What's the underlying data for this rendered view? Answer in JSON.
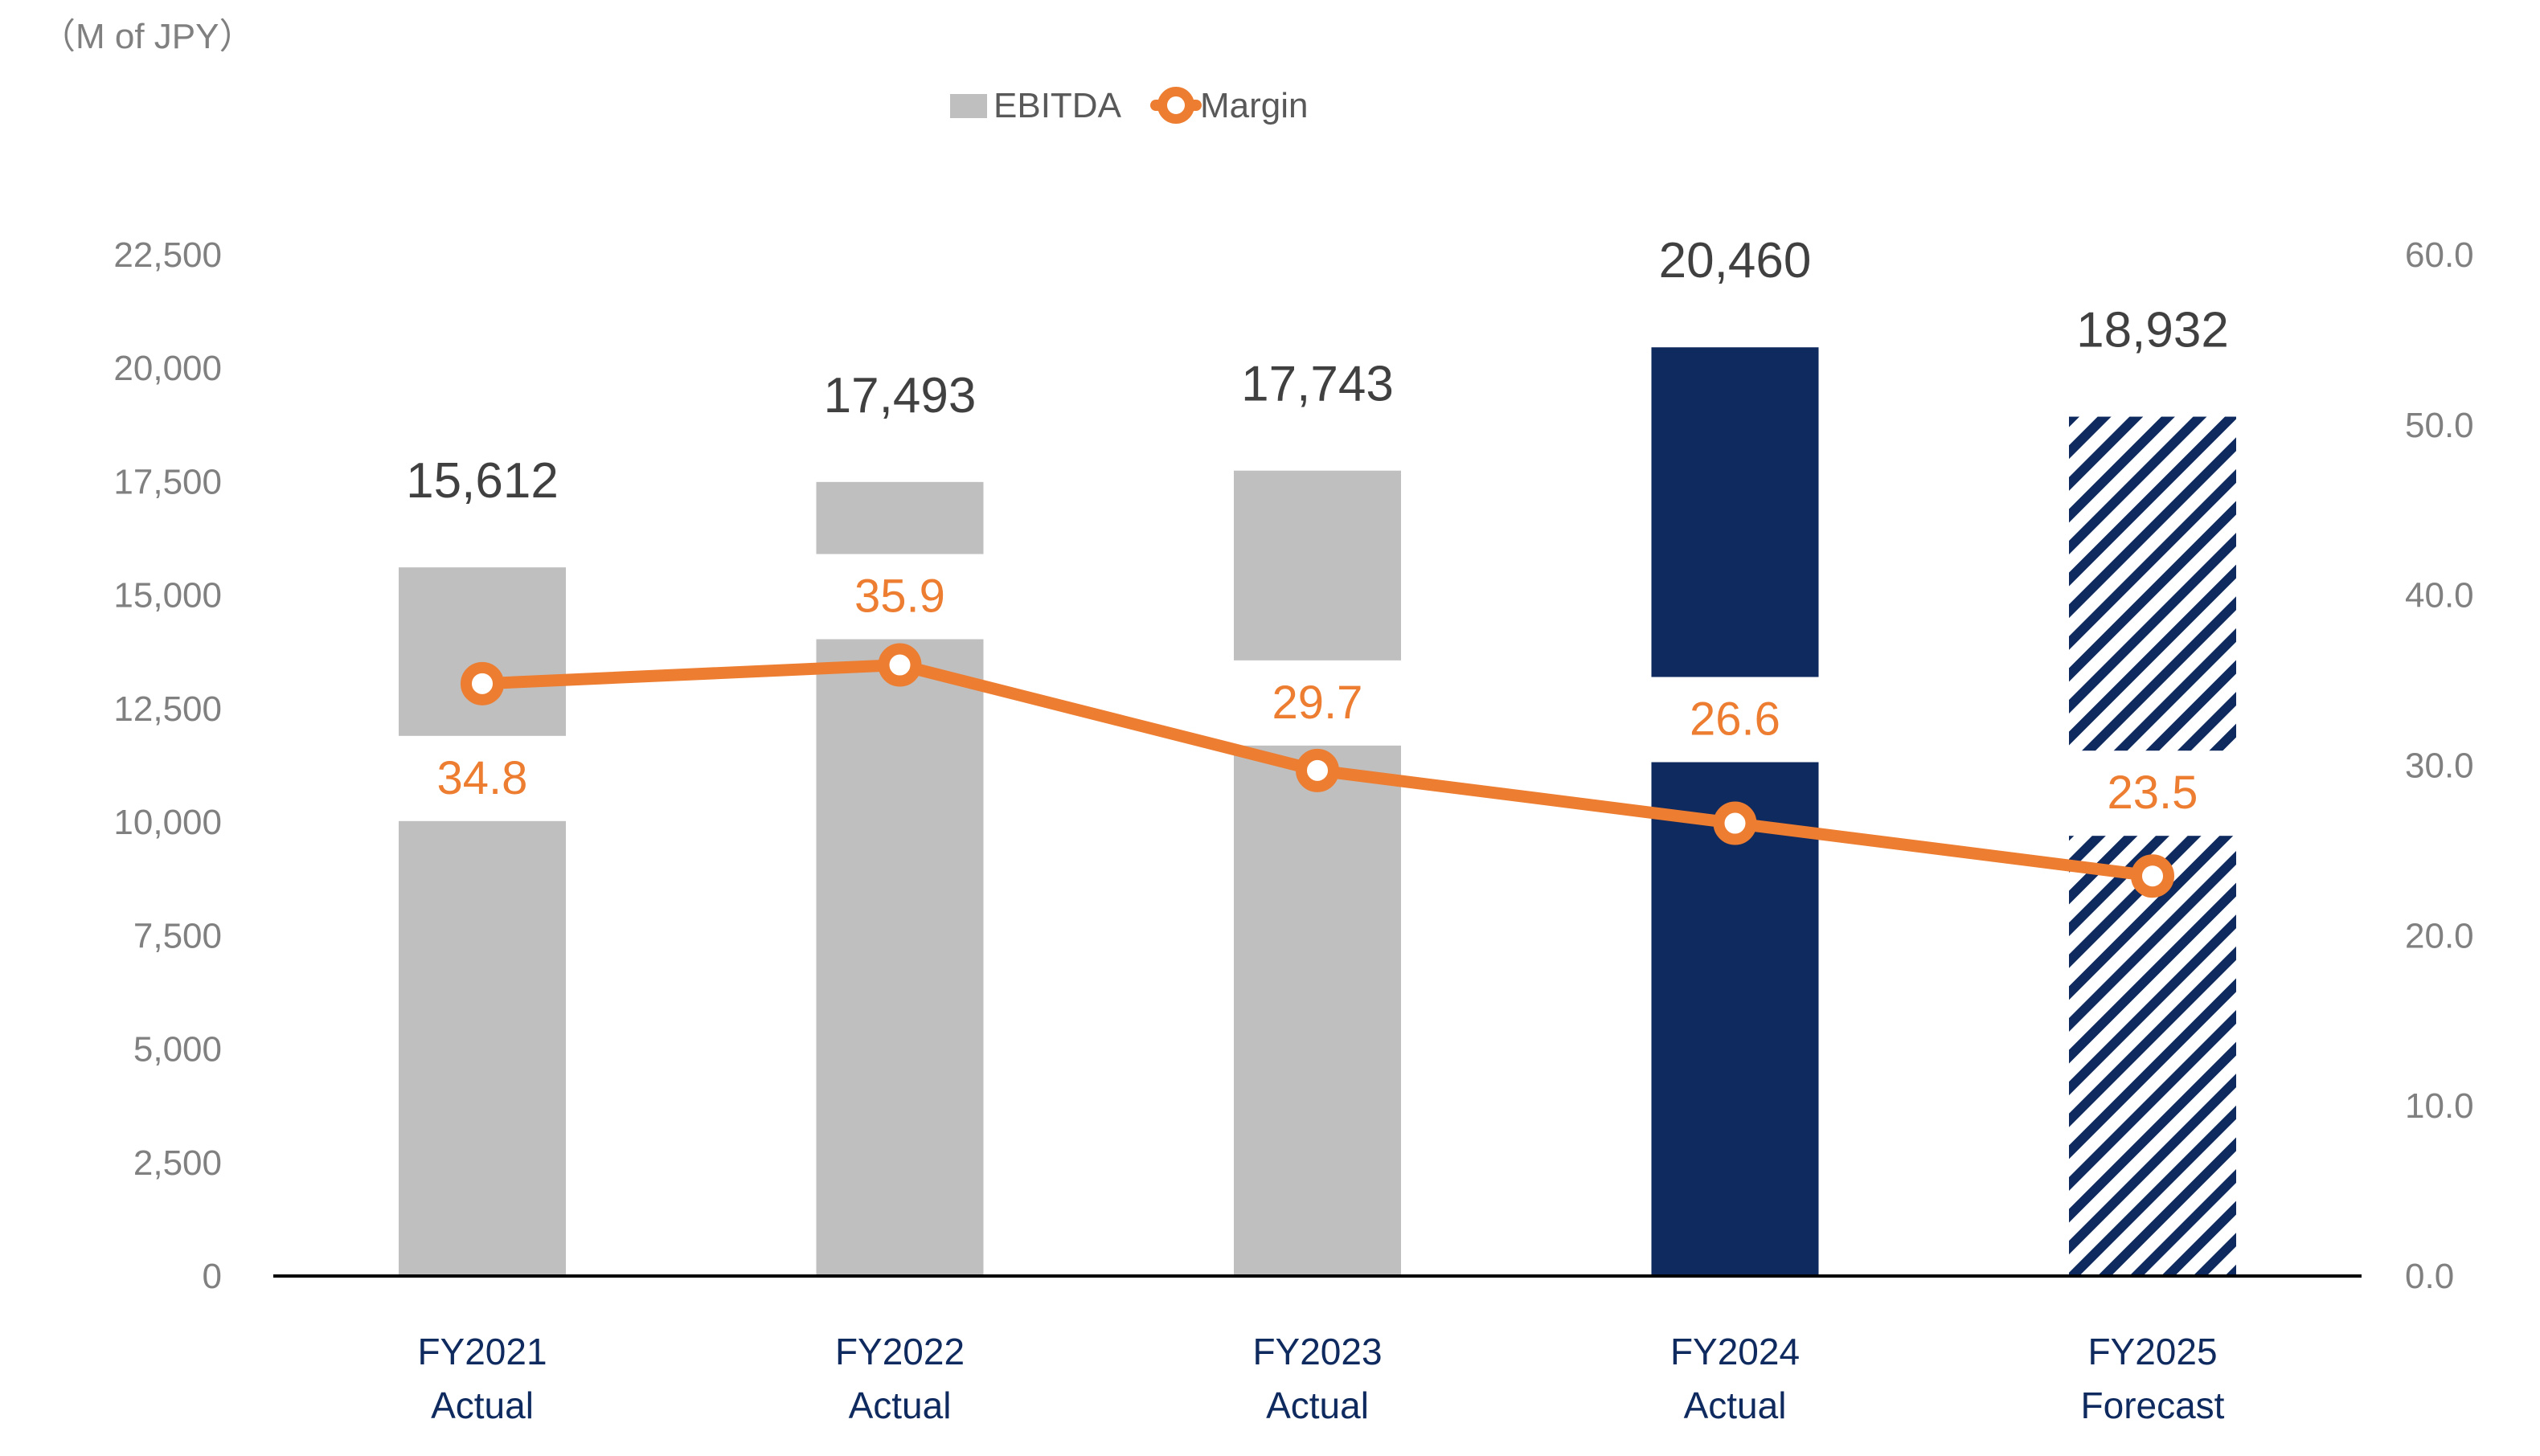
{
  "chart_data": {
    "type": "bar",
    "unit_label": "（M of JPY）",
    "categories": [
      {
        "line1": "FY2021",
        "line2": "Actual"
      },
      {
        "line1": "FY2022",
        "line2": "Actual"
      },
      {
        "line1": "FY2023",
        "line2": "Actual"
      },
      {
        "line1": "FY2024",
        "line2": "Actual"
      },
      {
        "line1": "FY2025",
        "line2": "Forecast"
      }
    ],
    "series": [
      {
        "name": "EBITDA",
        "type": "bar",
        "axis": "left",
        "values": [
          15612,
          17493,
          17743,
          20460,
          18932
        ],
        "labels": [
          "15,612",
          "17,493",
          "17,743",
          "20,460",
          "18,932"
        ],
        "styles": [
          "gray",
          "gray",
          "gray",
          "navy",
          "navy-hatched"
        ]
      },
      {
        "name": "Margin",
        "type": "line",
        "axis": "right",
        "values": [
          34.8,
          35.9,
          29.7,
          26.6,
          23.5
        ],
        "labels": [
          "34.8",
          "35.9",
          "29.7",
          "26.6",
          "23.5"
        ]
      }
    ],
    "y_left": {
      "range": [
        0,
        22500
      ],
      "ticks": [
        "0",
        "2,500",
        "5,000",
        "7,500",
        "10,000",
        "12,500",
        "15,000",
        "17,500",
        "20,000",
        "22,500"
      ],
      "tick_values": [
        0,
        2500,
        5000,
        7500,
        10000,
        12500,
        15000,
        17500,
        20000,
        22500
      ]
    },
    "y_right": {
      "range": [
        0,
        60
      ],
      "ticks": [
        "0.0",
        "10.0",
        "20.0",
        "30.0",
        "40.0",
        "50.0",
        "60.0"
      ],
      "tick_values": [
        0,
        10,
        20,
        30,
        40,
        50,
        60
      ]
    },
    "legend": {
      "position": "top-center",
      "items": [
        {
          "label": "EBITDA",
          "kind": "bar"
        },
        {
          "label": "Margin",
          "kind": "line-marker"
        }
      ]
    },
    "grid": false
  },
  "colors": {
    "gray_bar": "#bfbfbf",
    "navy_bar": "#0f2a5e",
    "margin_line": "#ed7d31",
    "axis_text": "#808080",
    "value_text": "#404040",
    "category_text": "#0f2a5e",
    "axis_line": "#000000"
  }
}
